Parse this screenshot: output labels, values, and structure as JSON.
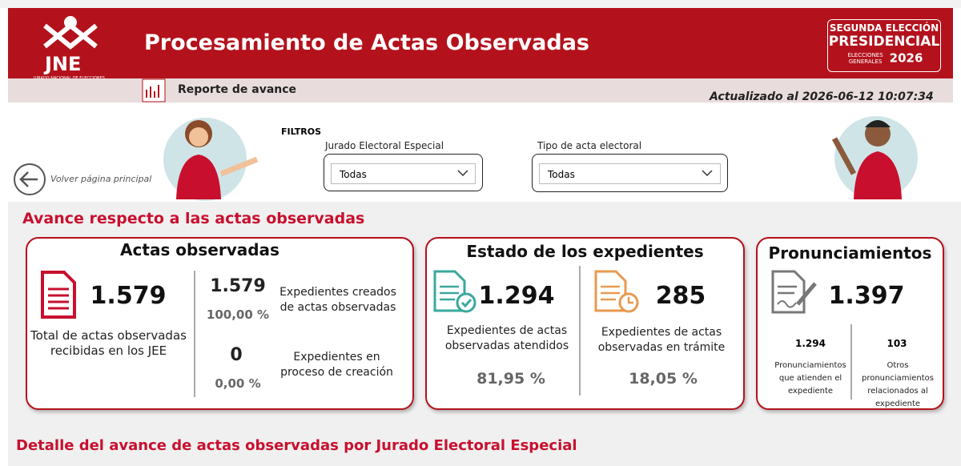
{
  "header": {
    "logo_text": "JNE",
    "logo_subtitle": "JURADO NACIONAL DE ELECCIONES",
    "title": "Procesamiento de Actas Observadas",
    "badge": {
      "line1": "SEGUNDA ELECCIÓN",
      "line2": "PRESIDENCIAL",
      "line3": "ELECCIONES GENERALES",
      "year": "2026"
    }
  },
  "subheader": {
    "report": "Reporte de avance",
    "updated": "Actualizado al 2026-06-12 10:07:34"
  },
  "back": "Volver página principal",
  "filters": {
    "title": "FILTROS",
    "items": [
      {
        "label": "Jurado Electoral Especial",
        "value": "Todas"
      },
      {
        "label": "Tipo de acta electoral",
        "value": "Todas"
      }
    ]
  },
  "section_title": "Avance respecto a las actas observadas",
  "cards": [
    {
      "title": "Actas observadas",
      "total": "1.579",
      "total_label": "Total de actas observadas recibidas en los JEE",
      "rows": [
        {
          "value": "1.579",
          "percent": "100,00 %",
          "label": "Expedientes creados de actas observadas"
        },
        {
          "value": "0",
          "percent": "0,00 %",
          "label": "Expedientes en proceso de creación"
        }
      ]
    },
    {
      "title": "Estado de los expedientes",
      "items": [
        {
          "value": "1.294",
          "label": "Expedientes de actas observadas atendidos",
          "percent": "81,95 %"
        },
        {
          "value": "285",
          "label": "Expedientes de actas observadas en trámite",
          "percent": "18,05 %"
        }
      ]
    },
    {
      "title": "Pronunciamientos",
      "total": "1.397",
      "items": [
        {
          "value": "1.294",
          "label": "Pronunciamientos que atienden el expediente"
        },
        {
          "value": "103",
          "label": "Otros pronunciamientos relacionados al expediente"
        }
      ]
    }
  ],
  "detail_title": "Detalle del avance de actas observadas por Jurado Electoral Especial"
}
